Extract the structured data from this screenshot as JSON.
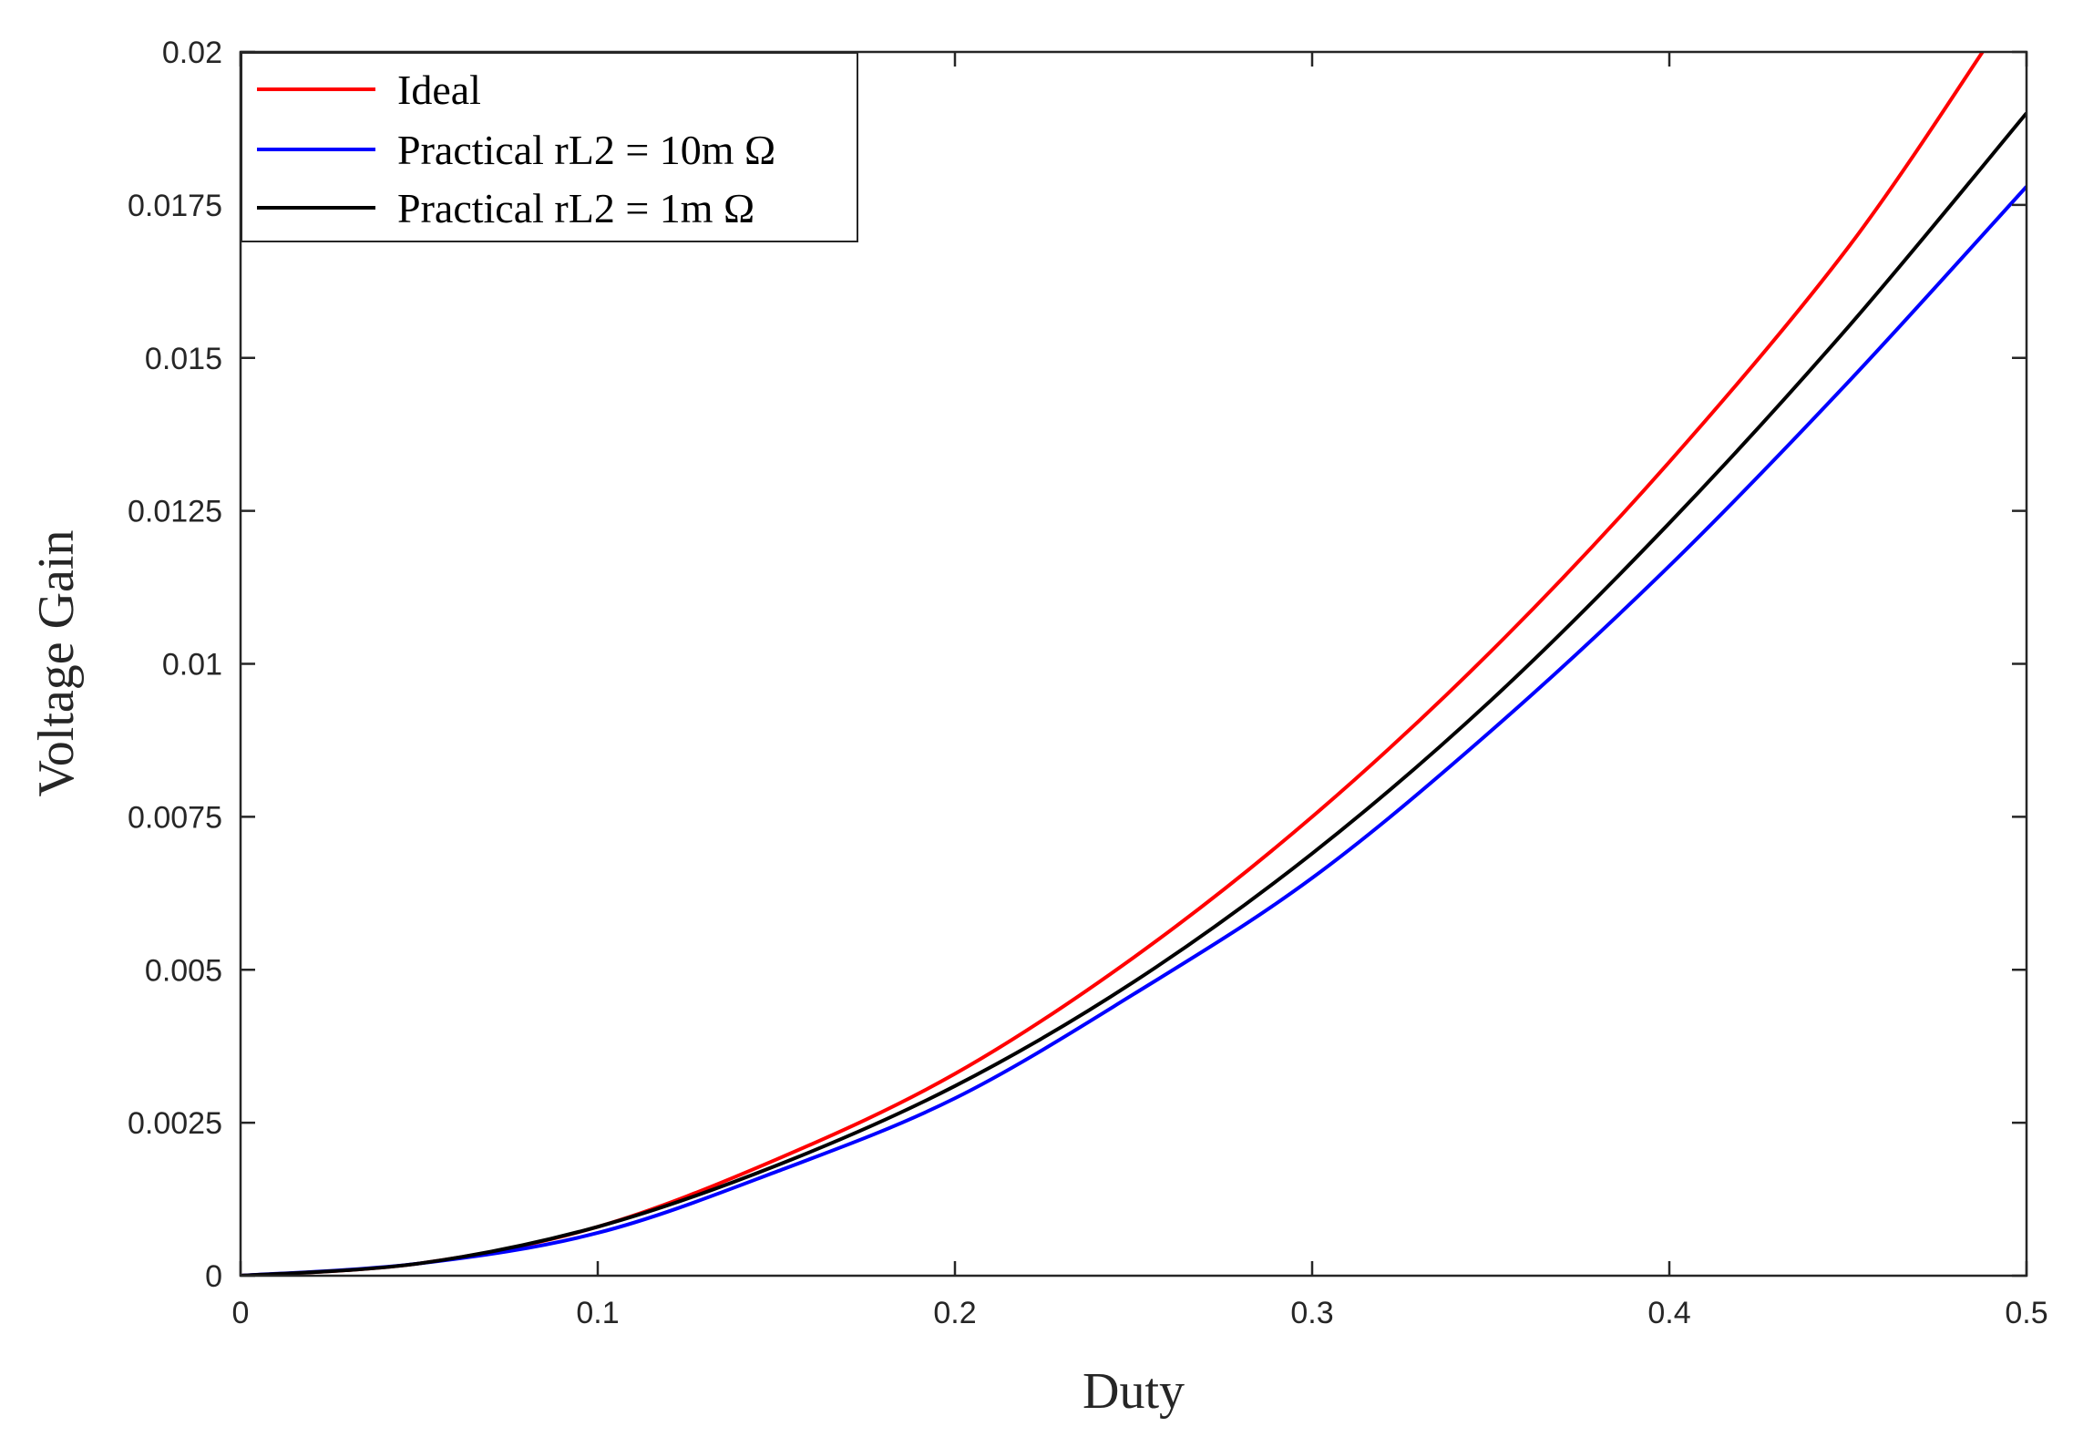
{
  "chart_data": {
    "type": "line",
    "title": "",
    "xlabel": "Duty",
    "ylabel": "Voltage Gain",
    "xlim": [
      0,
      0.5
    ],
    "ylim": [
      0,
      0.02
    ],
    "grid": false,
    "legend_position": "top-left",
    "x_ticks": [
      0,
      0.1,
      0.2,
      0.3,
      0.4,
      0.5
    ],
    "x_tick_labels": [
      "0",
      "0.1",
      "0.2",
      "0.3",
      "0.4",
      "0.5"
    ],
    "y_ticks": [
      0,
      0.0025,
      0.005,
      0.0075,
      0.01,
      0.0125,
      0.015,
      0.0175,
      0.02
    ],
    "y_tick_labels": [
      "0",
      "0.0025",
      "0.005",
      "0.0075",
      "0.01",
      "0.0125",
      "0.015",
      "0.0175",
      "0.02"
    ],
    "x": [
      0,
      0.05,
      0.1,
      0.15,
      0.2,
      0.25,
      0.3,
      0.35,
      0.4,
      0.45,
      0.5
    ],
    "series": [
      {
        "name": "Ideal",
        "color": "#ff0000",
        "x": [
          0,
          0.05,
          0.1,
          0.15,
          0.2,
          0.25,
          0.3,
          0.35,
          0.4,
          0.45,
          0.49
        ],
        "values": [
          0,
          0.0002,
          0.0008,
          0.0019,
          0.0033,
          0.0052,
          0.0075,
          0.0102,
          0.0133,
          0.0168,
          0.0202
        ]
      },
      {
        "name": "Practical rL2 = 10m Ω",
        "color": "#0000ff",
        "x": [
          0,
          0.05,
          0.1,
          0.15,
          0.2,
          0.25,
          0.3,
          0.35,
          0.4,
          0.45,
          0.5
        ],
        "values": [
          0,
          0.0002,
          0.0007,
          0.0017,
          0.0029,
          0.0046,
          0.0065,
          0.0089,
          0.0116,
          0.0146,
          0.0178
        ]
      },
      {
        "name": "Practical rL2 = 1m Ω",
        "color": "#000000",
        "x": [
          0,
          0.05,
          0.1,
          0.15,
          0.2,
          0.25,
          0.3,
          0.35,
          0.4,
          0.45,
          0.5
        ],
        "values": [
          0,
          0.0002,
          0.0008,
          0.0018,
          0.0031,
          0.0048,
          0.0069,
          0.0094,
          0.0123,
          0.0155,
          0.019
        ]
      }
    ]
  }
}
